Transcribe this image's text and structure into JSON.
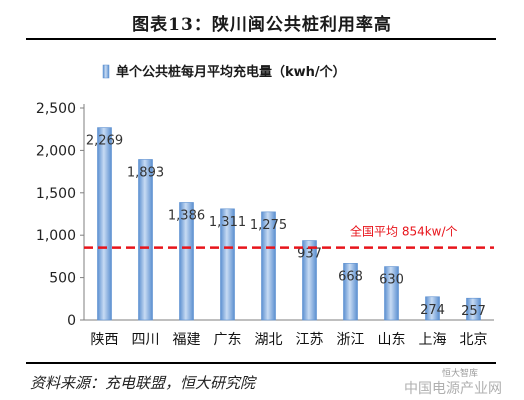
{
  "header": {
    "title": "图表13：陕川闽公共桩利用率高"
  },
  "footer": {
    "source": "资料来源：充电联盟，恒大研究院",
    "watermark": "中国电源产业网",
    "watermark_small": "恒大智库"
  },
  "chart_data": {
    "type": "bar",
    "legend": "单个公共桩每月平均充电量（kwh/个）",
    "legend_position": "top",
    "categories": [
      "陕西",
      "四川",
      "福建",
      "广东",
      "湖北",
      "江苏",
      "浙江",
      "山东",
      "上海",
      "北京"
    ],
    "values": [
      2269,
      1893,
      1386,
      1311,
      1275,
      937,
      668,
      630,
      274,
      257
    ],
    "value_labels": [
      "2,269",
      "1,893",
      "1,386",
      "1,311",
      "1,275",
      "937",
      "668",
      "630",
      "274",
      "257"
    ],
    "ylim": [
      0,
      2500
    ],
    "yticks": [
      0,
      500,
      1000,
      1500,
      2000,
      2500
    ],
    "ytick_labels": [
      "0",
      "500",
      "1,000",
      "1,500",
      "2,000",
      "2,500"
    ],
    "grid": false,
    "reference_line": {
      "value": 854,
      "label": "全国平均 854kw/个",
      "color": "#e8141b",
      "style": "dashed"
    },
    "colors": {
      "bar": "#5b8fd0",
      "bar_light": "#c7dbf3",
      "axis": "#7f7f7f"
    }
  }
}
